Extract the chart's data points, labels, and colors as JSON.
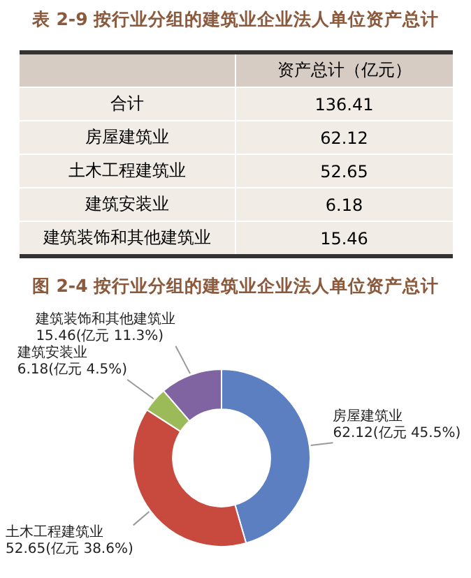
{
  "chart_data": {
    "type": "donut",
    "title": "图 2-4 按行业分组的建筑业企业法人单位资产总计",
    "categories": [
      "房屋建筑业",
      "土木工程建筑业",
      "建筑安装业",
      "建筑装饰和其他建筑业"
    ],
    "values": [
      62.12,
      52.65,
      6.18,
      15.46
    ],
    "colors": [
      "#5b7fc0",
      "#c8493e",
      "#9bbb59",
      "#8064a2"
    ],
    "value_labels": [
      "62.12(亿元 45.5%)",
      "52.65(亿元 38.6%)",
      "6.18(亿元 4.5%)",
      "15.46(亿元 11.3%)"
    ],
    "annotations": [
      "表 2-9 按行业分组的建筑业企业法人单位资产总计",
      "资产总计（亿元）",
      "合计",
      "136.41",
      "62.12",
      "52.65",
      "6.18",
      "15.46"
    ],
    "legend": false
  }
}
